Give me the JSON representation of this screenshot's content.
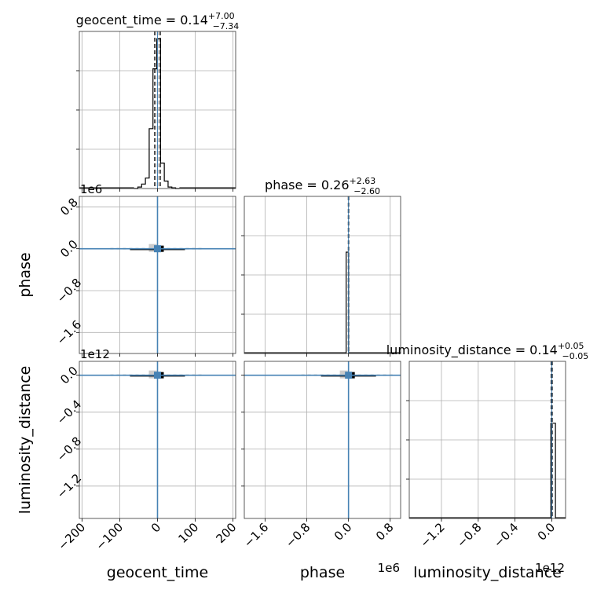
{
  "chart_data": {
    "type": "corner",
    "parameters": [
      "geocent_time",
      "phase",
      "luminosity_distance"
    ],
    "axis_labels": {
      "geocent_time": "geocent_time",
      "phase": "phase",
      "luminosity_distance": "luminosity_distance"
    },
    "titles": [
      {
        "param": "geocent_time",
        "prefix": "geocent_time = ",
        "median": "0.14",
        "plus": "+7.00",
        "minus": "−7.34"
      },
      {
        "param": "phase",
        "prefix": "phase = ",
        "median": "0.26",
        "plus": "+2.63",
        "minus": "−2.60"
      },
      {
        "param": "luminosity_distance",
        "prefix": "luminosity_distance = ",
        "median": "0.14",
        "plus": "+0.05",
        "minus": "−0.05"
      }
    ],
    "offset_labels": {
      "phase_y": "1e6",
      "luminosity_distance_y": "1e12",
      "phase_x": "1e6",
      "luminosity_distance_x": "1e12"
    },
    "axis_ranges": {
      "geocent_time": [
        -207,
        207
      ],
      "phase": [
        -2.0,
        1.0
      ],
      "luminosity_distance": [
        -1.55,
        0.15
      ]
    },
    "ticks": {
      "geocent_time": {
        "values": [
          -200,
          -100,
          0,
          100,
          200
        ],
        "labels": [
          "−200",
          "−100",
          "0",
          "100",
          "200"
        ]
      },
      "phase": {
        "values": [
          -1.6,
          -0.8,
          0.0,
          0.8
        ],
        "labels": [
          "−1.6",
          "−0.8",
          "0.0",
          "0.8"
        ]
      },
      "luminosity_distance": {
        "values": [
          -1.2,
          -0.8,
          -0.4,
          0.0
        ],
        "labels": [
          "−1.2",
          "−0.8",
          "−0.4",
          "0.0"
        ]
      }
    },
    "truths": {
      "geocent_time": 0,
      "phase": 0,
      "luminosity_distance": 0
    },
    "histograms": {
      "geocent_time": {
        "edges": [
          -62,
          -52,
          -42,
          -32,
          -22,
          -12,
          -2,
          8,
          18,
          28,
          38,
          48,
          58
        ],
        "counts": [
          0.0,
          0.01,
          0.03,
          0.07,
          0.4,
          0.8,
          1.0,
          0.17,
          0.05,
          0.01,
          0.005,
          0.0
        ],
        "ylim": [
          0,
          1.05
        ],
        "quantile_lines": [
          -7.2,
          0.14,
          7.14
        ]
      },
      "phase": {
        "edges": [
          -0.045,
          0.0
        ],
        "counts": [
          1.0
        ],
        "ylim": [
          0,
          1.55
        ],
        "quantile_lines": [
          -0.002,
          0.0,
          0.003
        ]
      },
      "luminosity_distance": {
        "edges": [
          -0.01,
          0.04
        ],
        "counts": [
          1.0
        ],
        "ylim": [
          0,
          1.65
        ],
        "quantile_lines": [
          -0.006,
          0.0,
          0.004
        ]
      }
    },
    "grid": true
  }
}
